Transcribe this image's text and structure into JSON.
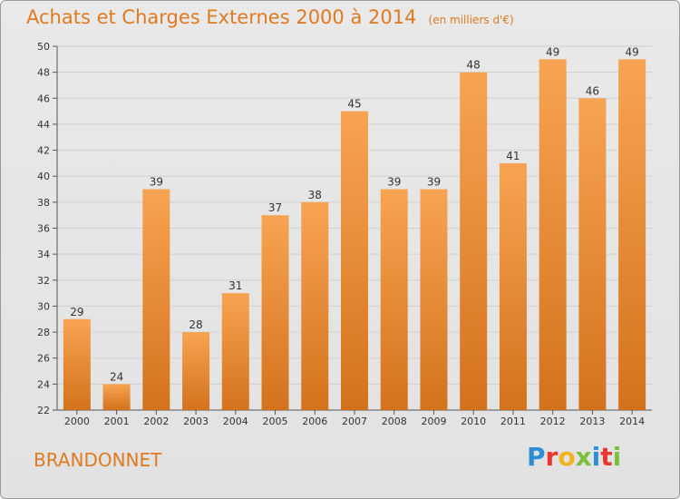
{
  "header": {
    "title": "Achats et Charges Externes 2000 à 2014",
    "unit": "(en milliers d'€)"
  },
  "footer": {
    "commune": "BRANDONNET",
    "logo_text": "Proxiti",
    "logo_colors": [
      "#2b8fd6",
      "#e8382d",
      "#f2b21c",
      "#7bbf3a",
      "#2b8fd6",
      "#e8382d",
      "#7bbf3a"
    ]
  },
  "colors": {
    "bar_top": "#f7a452",
    "bar_bottom": "#d4721c",
    "accent": "#e07a1f"
  },
  "chart_data": {
    "type": "bar",
    "categories": [
      "2000",
      "2001",
      "2002",
      "2003",
      "2004",
      "2005",
      "2006",
      "2007",
      "2008",
      "2009",
      "2010",
      "2011",
      "2012",
      "2013",
      "2014"
    ],
    "values": [
      29,
      24,
      39,
      28,
      31,
      37,
      38,
      45,
      39,
      39,
      48,
      41,
      49,
      46,
      49
    ],
    "title": "Achats et Charges Externes 2000 à 2014",
    "subtitle": "(en milliers d'€)",
    "ylim": [
      22,
      50
    ],
    "yticks": [
      22,
      24,
      26,
      28,
      30,
      32,
      34,
      36,
      38,
      40,
      42,
      44,
      46,
      48,
      50
    ],
    "grid": true,
    "show_data_labels": true
  }
}
